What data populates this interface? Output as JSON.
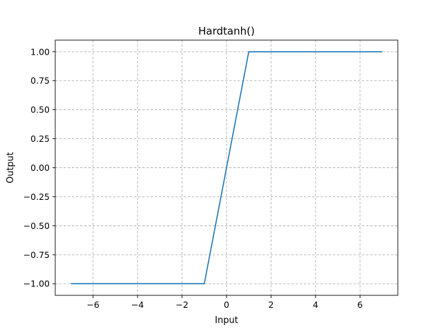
{
  "chart_data": {
    "type": "line",
    "title": "Hardtanh()",
    "xlabel": "Input",
    "ylabel": "Output",
    "xlim": [
      -7.7,
      7.7
    ],
    "ylim": [
      -1.1,
      1.1
    ],
    "grid": true,
    "line_color": "#1f77b4",
    "x_ticks": [
      -6,
      -4,
      -2,
      0,
      2,
      4,
      6
    ],
    "x_tick_labels": [
      "−6",
      "−4",
      "−2",
      "0",
      "2",
      "4",
      "6"
    ],
    "y_ticks": [
      -1.0,
      -0.75,
      -0.5,
      -0.25,
      0.0,
      0.25,
      0.5,
      0.75,
      1.0
    ],
    "y_tick_labels": [
      "−1.00",
      "−0.75",
      "−0.50",
      "−0.25",
      "0.00",
      "0.25",
      "0.50",
      "0.75",
      "1.00"
    ],
    "series": [
      {
        "x": [
          -7,
          -1,
          1,
          7
        ],
        "y": [
          -1,
          -1,
          1,
          1
        ]
      }
    ]
  }
}
